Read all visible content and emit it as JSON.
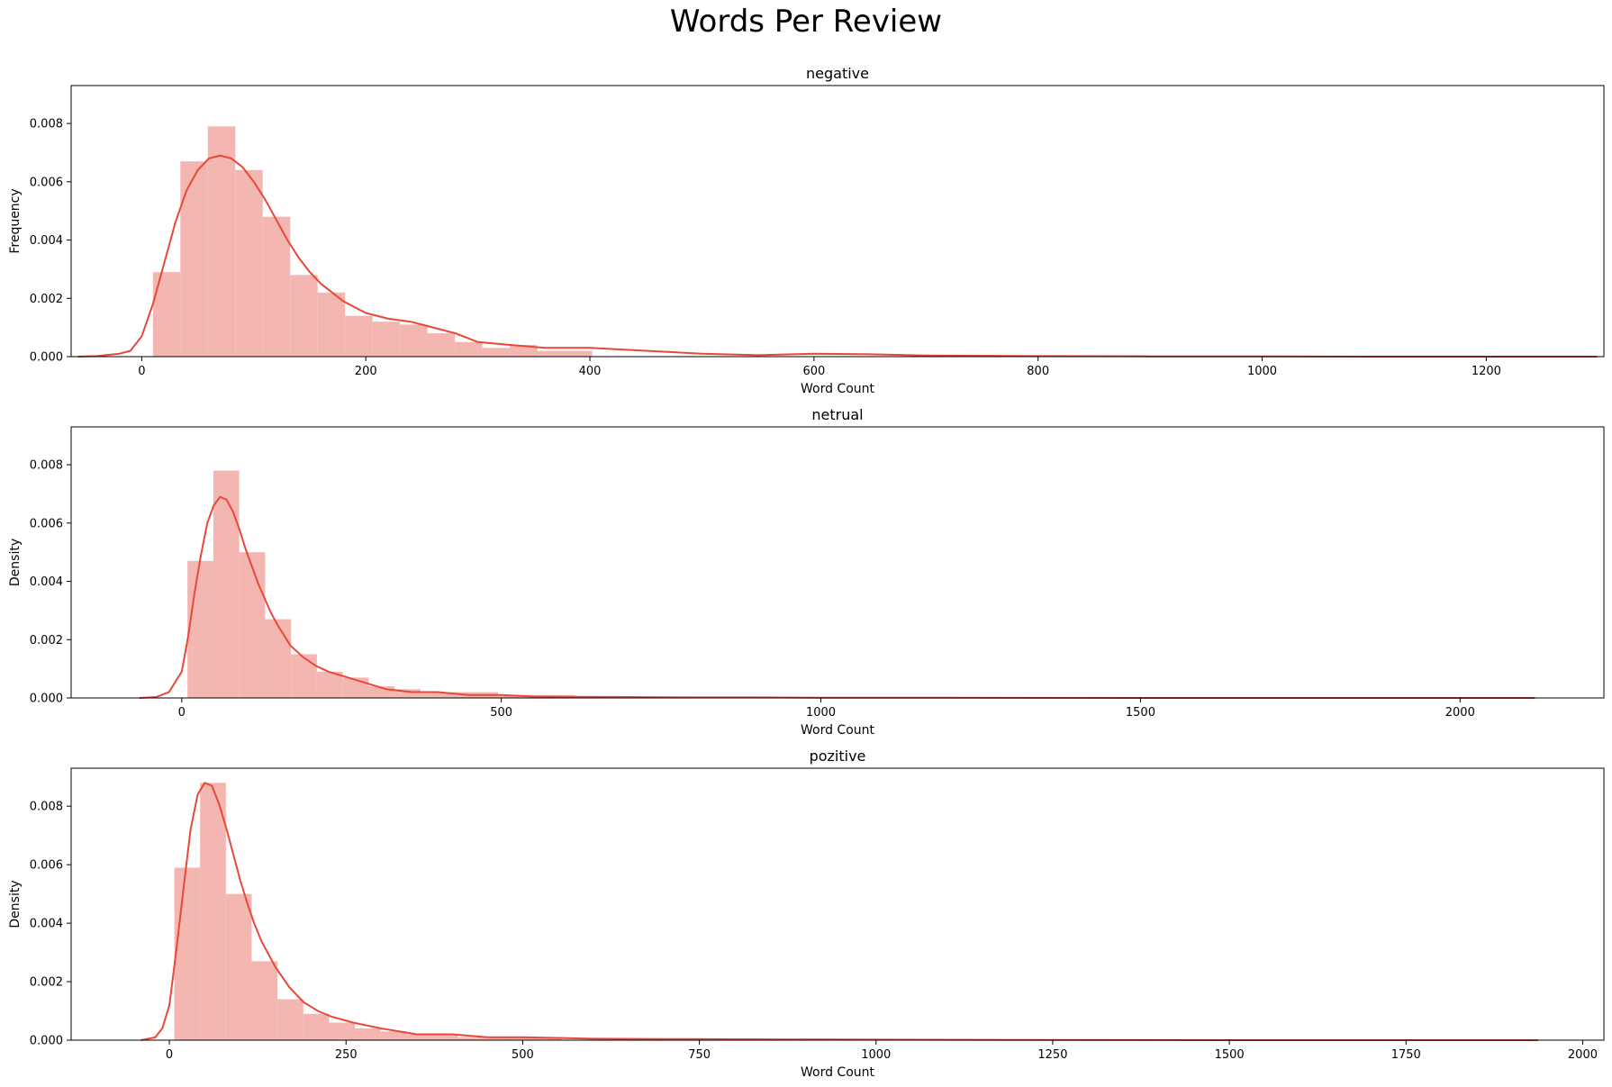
{
  "figure_title": "Words Per Review",
  "colors": {
    "hist_fill": "#f4b6b0",
    "kde_line": "#e8483a",
    "axis": "#000000"
  },
  "chart_data": [
    {
      "type": "bar",
      "title": "negative",
      "xlabel": "Word Count",
      "ylabel": "Frequency",
      "xlim": [
        -63,
        1305
      ],
      "ylim": [
        0,
        0.0093
      ],
      "xticks": [
        0,
        200,
        400,
        600,
        800,
        1000,
        1200
      ],
      "yticks": [
        0.0,
        0.002,
        0.004,
        0.006,
        0.008
      ],
      "ytick_labels": [
        "0.000",
        "0.002",
        "0.004",
        "0.006",
        "0.008"
      ],
      "bins": {
        "edges": [
          10,
          34.5,
          59,
          83.5,
          108,
          132.5,
          157,
          181.5,
          206,
          230.5,
          255,
          279.5,
          304,
          328.5,
          353,
          377.5,
          402
        ],
        "values": [
          0.0029,
          0.0067,
          0.0079,
          0.0064,
          0.0048,
          0.0028,
          0.0022,
          0.0014,
          0.0012,
          0.0011,
          0.0008,
          0.0005,
          0.0003,
          0.0004,
          0.0002,
          0.0002
        ]
      },
      "kde": {
        "x": [
          -57,
          -40,
          -20,
          -10,
          0,
          10,
          20,
          30,
          40,
          50,
          60,
          70,
          80,
          90,
          100,
          110,
          120,
          130,
          140,
          150,
          160,
          180,
          200,
          220,
          240,
          260,
          280,
          300,
          330,
          360,
          400,
          450,
          500,
          550,
          600,
          650,
          700,
          800,
          900,
          1000,
          1100,
          1200,
          1299
        ],
        "y": [
          0,
          2e-05,
          0.0001,
          0.0002,
          0.0007,
          0.0018,
          0.0032,
          0.0046,
          0.0057,
          0.0064,
          0.0068,
          0.0069,
          0.0068,
          0.0065,
          0.006,
          0.0054,
          0.0047,
          0.004,
          0.0034,
          0.0029,
          0.0025,
          0.0019,
          0.0015,
          0.0013,
          0.0012,
          0.001,
          0.0008,
          0.0005,
          0.0004,
          0.0003,
          0.0003,
          0.0002,
          0.0001,
          5e-05,
          0.0001,
          8e-05,
          4e-05,
          2e-05,
          1e-05,
          1e-05,
          0,
          0,
          0
        ]
      }
    },
    {
      "type": "bar",
      "title": "netrual",
      "xlabel": "Word Count",
      "ylabel": "Density",
      "xlim": [
        -173,
        2225
      ],
      "ylim": [
        0,
        0.0093
      ],
      "xticks": [
        0,
        500,
        1000,
        1500,
        2000
      ],
      "yticks": [
        0.0,
        0.002,
        0.004,
        0.006,
        0.008
      ],
      "ytick_labels": [
        "0.000",
        "0.002",
        "0.004",
        "0.006",
        "0.008"
      ],
      "bins": {
        "edges": [
          9,
          49.5,
          90,
          130.5,
          171,
          211.5,
          252,
          292.5,
          333,
          373.5,
          414,
          454.5,
          495,
          535.5,
          576,
          616.5
        ],
        "values": [
          0.0047,
          0.0078,
          0.005,
          0.0027,
          0.0015,
          0.0009,
          0.0007,
          0.0004,
          0.0003,
          0.0002,
          0.0002,
          0.0002,
          0.0001,
          0.0001,
          0.0001
        ]
      },
      "kde": {
        "x": [
          -66,
          -40,
          -20,
          0,
          10,
          20,
          30,
          40,
          50,
          60,
          70,
          80,
          90,
          100,
          110,
          120,
          130,
          140,
          150,
          170,
          190,
          210,
          230,
          260,
          290,
          320,
          360,
          400,
          450,
          500,
          550,
          600,
          700,
          800,
          900,
          1000,
          1200,
          1500,
          1800,
          2000,
          2117
        ],
        "y": [
          0,
          3e-05,
          0.0002,
          0.0009,
          0.0021,
          0.0036,
          0.0049,
          0.006,
          0.0066,
          0.0069,
          0.0068,
          0.0064,
          0.0058,
          0.0051,
          0.0045,
          0.0039,
          0.0034,
          0.0029,
          0.0025,
          0.0018,
          0.0014,
          0.0011,
          0.0009,
          0.0007,
          0.0005,
          0.0003,
          0.0002,
          0.0002,
          0.0001,
          0.0001,
          5e-05,
          4e-05,
          3e-05,
          2e-05,
          2e-05,
          1e-05,
          1e-05,
          0,
          0,
          0,
          0
        ]
      }
    },
    {
      "type": "bar",
      "title": "pozitive",
      "xlabel": "Word Count",
      "ylabel": "Density",
      "xlim": [
        -139,
        2030
      ],
      "ylim": [
        0,
        0.0093
      ],
      "xticks": [
        0,
        250,
        500,
        750,
        1000,
        1250,
        1500,
        1750,
        2000
      ],
      "yticks": [
        0.0,
        0.002,
        0.004,
        0.006,
        0.008
      ],
      "ytick_labels": [
        "0.000",
        "0.002",
        "0.004",
        "0.006",
        "0.008"
      ],
      "bins": {
        "edges": [
          7,
          43.5,
          80,
          116.5,
          153,
          189.5,
          226,
          262.5,
          299,
          335.5,
          372,
          408.5,
          445,
          481.5,
          518,
          554.5
        ],
        "values": [
          0.0059,
          0.0088,
          0.005,
          0.0027,
          0.0014,
          0.0009,
          0.0006,
          0.0004,
          0.0003,
          0.0002,
          0.0002,
          0.0001,
          0.0001,
          0.0001,
          0.0001
        ]
      },
      "kde": {
        "x": [
          -40,
          -20,
          -10,
          0,
          10,
          20,
          30,
          40,
          50,
          60,
          70,
          80,
          90,
          100,
          110,
          120,
          130,
          150,
          170,
          190,
          210,
          230,
          260,
          300,
          350,
          400,
          450,
          500,
          600,
          700,
          800,
          1000,
          1200,
          1500,
          1800,
          1937
        ],
        "y": [
          0,
          0.0001,
          0.0004,
          0.0012,
          0.0031,
          0.0052,
          0.0072,
          0.0084,
          0.0088,
          0.0087,
          0.0081,
          0.0073,
          0.0064,
          0.0055,
          0.0047,
          0.004,
          0.0034,
          0.0025,
          0.0018,
          0.0013,
          0.001,
          0.0008,
          0.0006,
          0.0004,
          0.0002,
          0.0002,
          0.0001,
          0.0001,
          5e-05,
          4e-05,
          3e-05,
          2e-05,
          1e-05,
          0,
          0,
          0
        ]
      }
    }
  ]
}
